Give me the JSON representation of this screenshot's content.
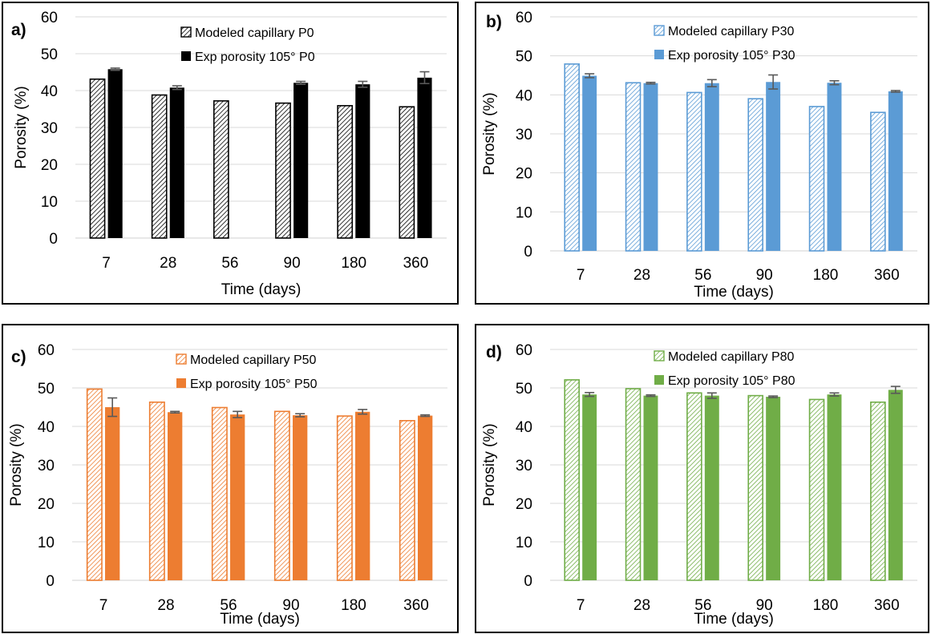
{
  "chart_data": [
    {
      "type": "bar",
      "panel_label": "a)",
      "categories": [
        "7",
        "28",
        "56",
        "90",
        "180",
        "360"
      ],
      "xlabel": "Time (days)",
      "ylabel": "Porosity (%)",
      "ylim": [
        0,
        60
      ],
      "yticks": [
        0,
        10,
        20,
        30,
        40,
        50,
        60
      ],
      "grid": true,
      "legend": "top-center",
      "series": [
        {
          "name": "Modeled capillary P0",
          "style": "hatched",
          "color": "#000000",
          "values": [
            43.1,
            38.8,
            37.2,
            36.6,
            35.9,
            35.6
          ]
        },
        {
          "name": "Exp porosity 105° P0",
          "style": "solid",
          "color": "#000000",
          "values": [
            45.8,
            40.8,
            null,
            42.1,
            41.7,
            43.5
          ],
          "errors": [
            0.3,
            0.5,
            null,
            0.4,
            0.8,
            1.6
          ]
        }
      ]
    },
    {
      "type": "bar",
      "panel_label": "b)",
      "categories": [
        "7",
        "28",
        "56",
        "90",
        "180",
        "360"
      ],
      "xlabel": "Time (days)",
      "ylabel": "Porosity (%)",
      "ylim": [
        0,
        60
      ],
      "yticks": [
        0,
        10,
        20,
        30,
        40,
        50,
        60
      ],
      "grid": true,
      "legend": "top-center",
      "series": [
        {
          "name": "Modeled capillary P30",
          "style": "hatched",
          "color": "#5b9bd5",
          "values": [
            47.9,
            43.1,
            40.6,
            39.0,
            37.0,
            35.5
          ]
        },
        {
          "name": "Exp porosity 105° P30",
          "style": "solid",
          "color": "#5b9bd5",
          "values": [
            44.9,
            43.0,
            43.0,
            43.3,
            43.1,
            40.9
          ],
          "errors": [
            0.5,
            0.2,
            0.9,
            1.8,
            0.5,
            0.2
          ]
        }
      ]
    },
    {
      "type": "bar",
      "panel_label": "c)",
      "categories": [
        "7",
        "28",
        "56",
        "90",
        "180",
        "360"
      ],
      "xlabel": "Time (days)",
      "ylabel": "Porosity (%)",
      "ylim": [
        0,
        60
      ],
      "yticks": [
        0,
        10,
        20,
        30,
        40,
        50,
        60
      ],
      "grid": true,
      "legend": "top-center",
      "series": [
        {
          "name": "Modeled capillary P50",
          "style": "hatched",
          "color": "#ed7d31",
          "values": [
            49.7,
            46.3,
            44.9,
            43.9,
            42.7,
            41.5
          ]
        },
        {
          "name": "Exp porosity 105° P50",
          "style": "solid",
          "color": "#ed7d31",
          "values": [
            45.0,
            43.7,
            43.1,
            42.9,
            43.8,
            42.8
          ],
          "errors": [
            2.4,
            0.2,
            0.8,
            0.4,
            0.6,
            0.2
          ]
        }
      ]
    },
    {
      "type": "bar",
      "panel_label": "d)",
      "categories": [
        "7",
        "28",
        "56",
        "90",
        "180",
        "360"
      ],
      "xlabel": "Time (days)",
      "ylabel": "Porosity (%)",
      "ylim": [
        0,
        60
      ],
      "yticks": [
        0,
        10,
        20,
        30,
        40,
        50,
        60
      ],
      "grid": true,
      "legend": "top-center",
      "series": [
        {
          "name": "Modeled capillary P80",
          "style": "hatched",
          "color": "#70ad47",
          "values": [
            52.1,
            49.8,
            48.7,
            48.0,
            47.0,
            46.3
          ]
        },
        {
          "name": "Exp porosity 105° P80",
          "style": "solid",
          "color": "#70ad47",
          "values": [
            48.3,
            48.0,
            48.0,
            47.7,
            48.3,
            49.5
          ],
          "errors": [
            0.5,
            0.2,
            0.7,
            0.2,
            0.4,
            0.9
          ]
        }
      ]
    }
  ]
}
